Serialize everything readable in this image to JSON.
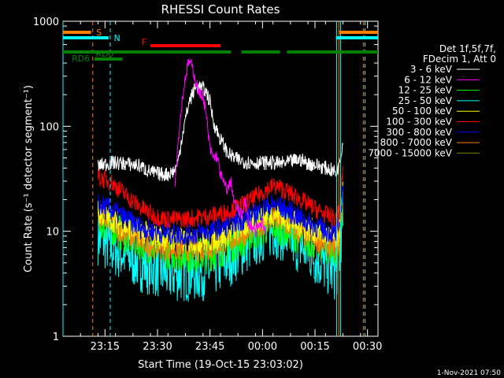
{
  "chart_data": {
    "type": "line",
    "title": "RHESSI Count Rates",
    "xlabel": "Start Time (19-Oct-15 23:03:02)",
    "ylabel": "Count Rate (s⁻¹ detector segment⁻¹)",
    "yscale": "log",
    "ylim": [
      1,
      1000
    ],
    "xlim_minutes_from_start": [
      0,
      90
    ],
    "x_tick_labels": [
      "23:15",
      "23:30",
      "23:45",
      "00:00",
      "00:15",
      "00:30"
    ],
    "x_tick_minutes": [
      12,
      27,
      42,
      57,
      72,
      87
    ],
    "y_tick_labels": [
      "1",
      "10",
      "100",
      "1000"
    ],
    "y_tick_values": [
      1,
      10,
      100,
      1000
    ],
    "legend_header": [
      "Det 1f,5f,7f,",
      "FDecim 1, Att 0"
    ],
    "series": [
      {
        "name": "3 - 6 keV",
        "color": "#ffffff",
        "x": [
          10,
          14,
          18,
          22,
          24,
          26,
          28,
          30,
          32,
          33,
          34,
          36,
          38,
          40,
          41,
          42,
          43,
          44,
          45,
          46,
          47,
          48,
          49,
          50,
          52,
          54,
          56,
          58,
          60,
          62,
          64,
          66,
          68,
          70,
          72,
          74,
          76,
          77,
          78,
          79,
          80
        ],
        "values": [
          42,
          45,
          44,
          42,
          38,
          36,
          35,
          35,
          38,
          48,
          80,
          170,
          240,
          230,
          210,
          170,
          110,
          90,
          75,
          65,
          56,
          52,
          50,
          48,
          46,
          45,
          45,
          45,
          45,
          44,
          45,
          47,
          48,
          44,
          43,
          41,
          39,
          38,
          36,
          45,
          75
        ]
      },
      {
        "name": "6 - 12 keV",
        "color": "#ff00ff",
        "x": [
          32,
          33,
          34,
          35,
          36,
          37,
          38,
          39,
          40,
          41,
          42,
          43,
          44,
          45,
          46,
          47,
          48,
          49,
          50,
          51,
          52,
          53,
          54,
          55,
          56,
          57,
          58
        ],
        "values": [
          30,
          80,
          170,
          300,
          420,
          360,
          260,
          200,
          200,
          120,
          60,
          50,
          52,
          35,
          28,
          25,
          30,
          18,
          16,
          14,
          20,
          12,
          11,
          10,
          11,
          12,
          10
        ]
      },
      {
        "name": "12 - 25 keV",
        "color": "#00ff00",
        "x": [
          10,
          14,
          18,
          22,
          26,
          30,
          34,
          38,
          42,
          46,
          50,
          54,
          58,
          60,
          62,
          66,
          70,
          74,
          76,
          78,
          79,
          80
        ],
        "values": [
          13,
          11,
          9,
          8,
          7,
          6.5,
          6.2,
          6,
          6.2,
          7,
          8,
          9.5,
          11,
          11.5,
          11,
          9.5,
          8.5,
          7.5,
          7,
          6.5,
          8,
          20
        ]
      },
      {
        "name": "25 - 50 keV",
        "color": "#00ffff",
        "x": [
          10,
          14,
          18,
          22,
          26,
          30,
          34,
          38,
          42,
          46,
          50,
          54,
          58,
          60,
          62,
          66,
          70,
          74,
          76,
          78,
          79,
          80
        ],
        "values": [
          9,
          7,
          6,
          5,
          4.5,
          4,
          4,
          4,
          4.3,
          5,
          6.5,
          8,
          10,
          10.5,
          10,
          8,
          6.5,
          5,
          4.5,
          4,
          6,
          15
        ]
      },
      {
        "name": "50 - 100 keV",
        "color": "#ffff00",
        "x": [
          10,
          14,
          18,
          22,
          26,
          30,
          34,
          38,
          42,
          46,
          50,
          54,
          58,
          60,
          62,
          66,
          70,
          74,
          76,
          78,
          79,
          80
        ],
        "values": [
          15,
          13,
          11,
          10,
          9,
          8.5,
          8.2,
          8,
          8.2,
          9,
          10.5,
          12,
          14,
          15,
          14,
          12,
          10.5,
          9.5,
          9,
          8.5,
          10,
          25
        ]
      },
      {
        "name": "100 - 300 keV",
        "color": "#ff0000",
        "x": [
          10,
          14,
          18,
          22,
          26,
          30,
          34,
          38,
          42,
          46,
          50,
          54,
          58,
          60,
          62,
          66,
          70,
          74,
          76,
          78,
          79,
          80
        ],
        "values": [
          33,
          29,
          22,
          17,
          14,
          13,
          13,
          13.5,
          14,
          15,
          17,
          20,
          25,
          27,
          26,
          22,
          18,
          15,
          14,
          13,
          16,
          40
        ]
      },
      {
        "name": "300 - 800 keV",
        "color": "#0000ff",
        "x": [
          10,
          14,
          18,
          22,
          26,
          30,
          34,
          38,
          42,
          46,
          50,
          54,
          58,
          60,
          62,
          66,
          70,
          74,
          76,
          78,
          79,
          80
        ],
        "values": [
          18,
          16,
          13,
          11,
          10,
          9.5,
          9.3,
          9.5,
          10,
          11,
          12.5,
          14,
          17,
          18,
          17,
          14.5,
          12,
          10.5,
          10,
          9.5,
          11,
          28
        ]
      },
      {
        "name": "800 - 7000 keV",
        "color": "#ff8000",
        "x": [
          10,
          14,
          18,
          22,
          26,
          30,
          34,
          38,
          42,
          46,
          50,
          54,
          58,
          60,
          62,
          66,
          70,
          74,
          76,
          78,
          79,
          80
        ],
        "values": [
          14,
          12,
          9.5,
          8,
          7.5,
          7,
          6.8,
          6.8,
          7,
          7.8,
          9,
          10.5,
          12.5,
          13,
          12.5,
          10.5,
          9,
          8,
          7.5,
          7,
          8.5,
          22
        ]
      },
      {
        "name": "7000 - 15000 keV",
        "color": "#808000",
        "x": [],
        "values": []
      }
    ],
    "flag_bars": [
      {
        "label": "S",
        "color": "#ff8000",
        "segments": [
          [
            0,
            8
          ],
          [
            79,
            90
          ]
        ]
      },
      {
        "label": "N",
        "color": "#00ffff",
        "segments": [
          [
            0,
            13
          ],
          [
            78,
            90
          ]
        ]
      },
      {
        "label": "F",
        "color": "#ff0000",
        "segments": [
          [
            25,
            45
          ]
        ]
      },
      {
        "label": "RD0",
        "color": "#008000",
        "segments": [
          [
            9,
            17
          ]
        ]
      },
      {
        "label": "RD6",
        "color": "#008000",
        "segments": [
          [
            0,
            48
          ],
          [
            51,
            62
          ],
          [
            64,
            90
          ]
        ]
      }
    ],
    "vertical_markers": [
      {
        "minute": 0,
        "color": "#00ffff",
        "style": "solid"
      },
      {
        "minute": 8.5,
        "color": "#ff8000",
        "style": "dashed"
      },
      {
        "minute": 13.5,
        "color": "#00ffff",
        "style": "dashed"
      },
      {
        "minute": 78.2,
        "color": "#00ffff",
        "style": "solid"
      },
      {
        "minute": 78.8,
        "color": "#ff8000",
        "style": "solid"
      },
      {
        "minute": 79.3,
        "color": "#00ffff",
        "style": "solid"
      },
      {
        "minute": 85.8,
        "color": "#ff8000",
        "style": "dashed"
      },
      {
        "minute": 86.3,
        "color": "#00ffff",
        "style": "dashed"
      }
    ],
    "footer_date": "1-Nov-2021 07:50"
  }
}
